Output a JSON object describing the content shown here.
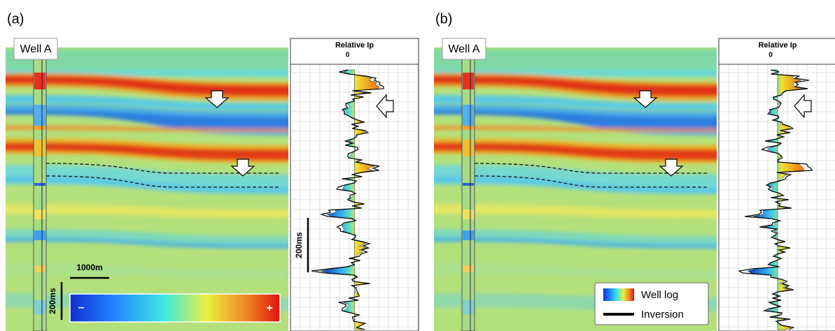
{
  "panels": [
    {
      "label": "(a)",
      "well": "Well A",
      "log_header": "Relative Ip",
      "log_zero": "0",
      "scale_bar": "1000m",
      "time_bar": "200ms",
      "colorbar_min": "–",
      "colorbar_max": "+",
      "log_time_bar": "200ms"
    },
    {
      "label": "(b)",
      "well": "Well A",
      "log_header": "Relative Ip",
      "log_zero": "0",
      "legend": [
        "Well log",
        "Inversion"
      ]
    }
  ]
}
